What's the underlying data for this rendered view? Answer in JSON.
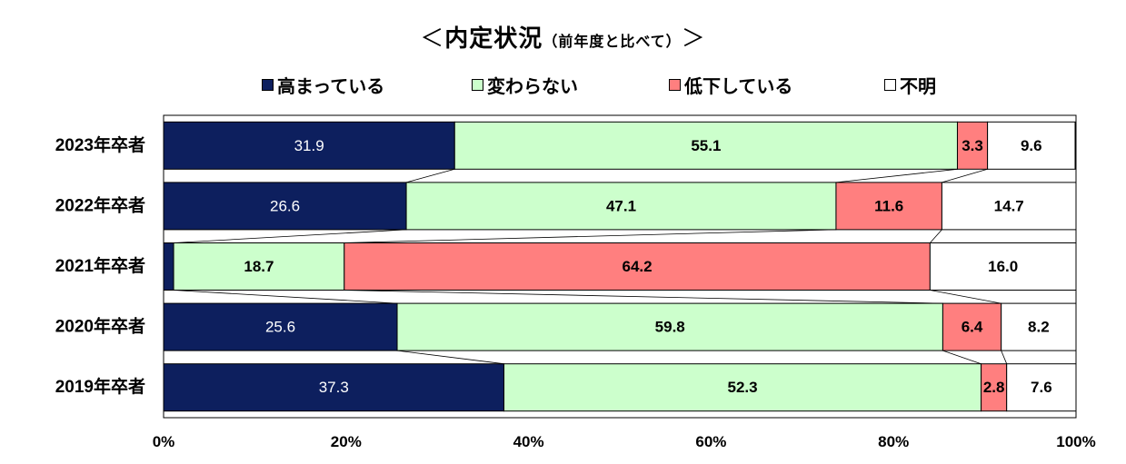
{
  "title": {
    "open": "＜",
    "main": "内定状況",
    "sub": "（前年度と比べて）",
    "close": "＞"
  },
  "colors": {
    "高まっている": "#0D1F5E",
    "変わらない": "#CCFFCC",
    "低下している": "#FF7F7F",
    "不明": "#FFFFFF",
    "border": "#000000"
  },
  "chart_data": {
    "type": "bar",
    "orientation": "horizontal",
    "stacked": "100%",
    "categories": [
      "2023年卒者",
      "2022年卒者",
      "2021年卒者",
      "2020年卒者",
      "2019年卒者"
    ],
    "series": [
      {
        "name": "高まっている",
        "values": [
          31.9,
          26.6,
          1.1,
          25.6,
          37.3
        ]
      },
      {
        "name": "変わらない",
        "values": [
          55.1,
          47.1,
          18.7,
          59.8,
          52.3
        ]
      },
      {
        "name": "低下している",
        "values": [
          3.3,
          11.6,
          64.2,
          6.4,
          2.8
        ]
      },
      {
        "name": "不明",
        "values": [
          9.6,
          14.7,
          16.0,
          8.2,
          7.6
        ]
      }
    ],
    "xlim": [
      0,
      100
    ],
    "xticks": [
      "0%",
      "20%",
      "40%",
      "60%",
      "80%",
      "100%"
    ],
    "legend_position": "top",
    "series_lines": true,
    "grid": false
  }
}
